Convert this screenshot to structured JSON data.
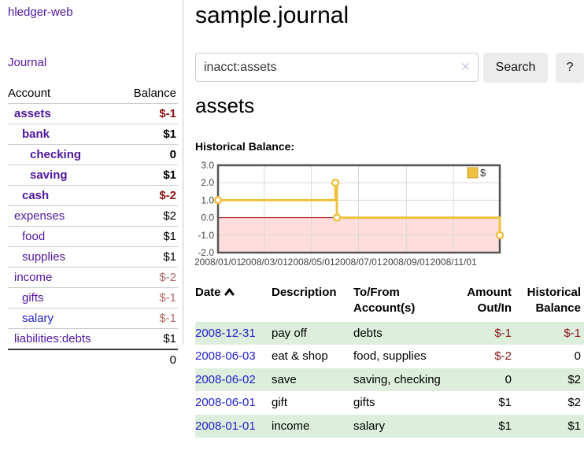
{
  "app": {
    "brand": "hledger-web"
  },
  "sidebar": {
    "nav_journal": "Journal",
    "headers": {
      "account": "Account",
      "balance": "Balance"
    },
    "accounts": [
      {
        "name": "assets",
        "balance": "$-1"
      },
      {
        "name": "bank",
        "balance": "$1"
      },
      {
        "name": "checking",
        "balance": "0"
      },
      {
        "name": "saving",
        "balance": "$1"
      },
      {
        "name": "cash",
        "balance": "$-2"
      },
      {
        "name": "expenses",
        "balance": "$2"
      },
      {
        "name": "food",
        "balance": "$1"
      },
      {
        "name": "supplies",
        "balance": "$1"
      },
      {
        "name": "income",
        "balance": "$-2"
      },
      {
        "name": "gifts",
        "balance": "$-1"
      },
      {
        "name": "salary",
        "balance": "$-1"
      },
      {
        "name": "liabilities:debts",
        "balance": "$1"
      }
    ],
    "total": "0"
  },
  "header": {
    "title": "sample.journal"
  },
  "search": {
    "value": "inacct:assets",
    "clear_label": "✕",
    "button_label": "Search",
    "help_label": "?"
  },
  "account_page": {
    "title": "assets",
    "chart_heading": "Historical Balance:"
  },
  "chart_data": {
    "type": "line",
    "step": true,
    "title": "Historical Balance:",
    "legend": [
      {
        "label": "$",
        "color": "#edc240"
      }
    ],
    "legend_position": "top-right",
    "x_range": [
      "2008-01-01",
      "2008-12-31"
    ],
    "ylim": [
      -2.0,
      3.0
    ],
    "yticks": [
      "3.0",
      "2.0",
      "1.0",
      "0.0",
      "-1.0",
      "-2.0"
    ],
    "ytick_values": [
      3,
      2,
      1,
      0,
      -1,
      -2
    ],
    "xticks": [
      "2008/01/01",
      "2008/03/01",
      "2008/05/01",
      "2008/07/01",
      "2008/09/01",
      "2008/11/01"
    ],
    "xtick_dates": [
      "2008-01-01",
      "2008-03-01",
      "2008-05-01",
      "2008-07-01",
      "2008-09-01",
      "2008-11-01"
    ],
    "series": [
      {
        "name": "$",
        "color": "#edc240",
        "points": [
          [
            "2008-01-01",
            1
          ],
          [
            "2008-06-01",
            2
          ],
          [
            "2008-06-03",
            0
          ],
          [
            "2008-12-31",
            -1
          ]
        ]
      }
    ],
    "grid": true,
    "grid_color": "#d8d8d8",
    "border_color": "#545454",
    "negative_region_color": "#ffdddd",
    "zero_line_color": "#990000"
  },
  "register": {
    "columns": {
      "date": "Date",
      "description": "Description",
      "accounts": "To/From Account(s)",
      "amount": "Amount Out/In",
      "balance": "Historical Balance"
    },
    "rows": [
      {
        "date": "2008-12-31",
        "description": "pay off",
        "accounts": "debts",
        "amount": "$-1",
        "balance": "$-1"
      },
      {
        "date": "2008-06-03",
        "description": "eat & shop",
        "accounts": "food, supplies",
        "amount": "$-2",
        "balance": "0"
      },
      {
        "date": "2008-06-02",
        "description": "save",
        "accounts": "saving, checking",
        "amount": "0",
        "balance": "$2"
      },
      {
        "date": "2008-06-01",
        "description": "gift",
        "accounts": "gifts",
        "amount": "$1",
        "balance": "$2"
      },
      {
        "date": "2008-01-01",
        "description": "income",
        "accounts": "salary",
        "amount": "$1",
        "balance": "$1"
      }
    ]
  },
  "colors": {
    "link_purple": "#4f169c",
    "link_blue": "#2222cc",
    "negative_strong": "#8b1414",
    "negative_soft": "#b36a6a",
    "row_green": "#ddeedd",
    "chart_yellow": "#edc240"
  }
}
